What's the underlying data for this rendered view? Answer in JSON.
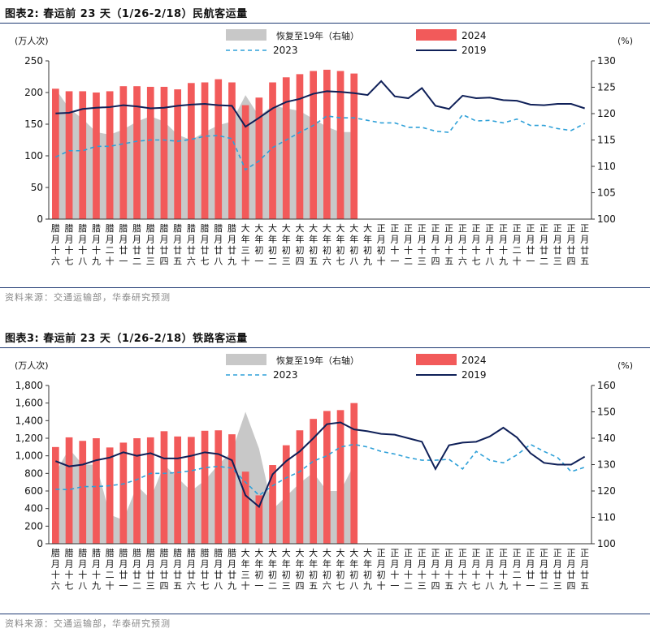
{
  "charts": [
    {
      "title": "图表2:   春运前 23 天（1/26-2/18）民航客运量",
      "source": "资料来源：交通运输部，华泰研究预测",
      "left_unit": "(万人次)",
      "right_unit": "(%)",
      "legend": {
        "recovery": "恢复至19年（右轴）",
        "y2024": "2024",
        "y2023": "2023",
        "y2019": "2019"
      },
      "categories": [
        "腊月十六",
        "腊月十七",
        "腊月十八",
        "腊月十九",
        "腊月二十",
        "腊月廿一",
        "腊月廿二",
        "腊月廿三",
        "腊月廿四",
        "腊月廿五",
        "腊月廿六",
        "腊月廿七",
        "腊月廿八",
        "腊月廿九",
        "大年三十",
        "大年初一",
        "大年初二",
        "大年初三",
        "大年初四",
        "大年初五",
        "大年初六",
        "大年初七",
        "大年初八",
        "大年初九",
        "正月初十",
        "正月十一",
        "正月十二",
        "正月十三",
        "正月十四",
        "正月十五",
        "正月十六",
        "正月十七",
        "正月十八",
        "正月十九",
        "正月二十",
        "正月廿一",
        "正月廿二",
        "正月廿三",
        "正月廿四",
        "正月廿五"
      ],
      "y_ticks": [
        "0",
        "50",
        "100",
        "150",
        "200",
        "250"
      ],
      "y2_ticks": [
        "100",
        "105",
        "110",
        "115",
        "120",
        "125",
        "130"
      ],
      "chart_data": {
        "type": "bar",
        "ylim": [
          0,
          250
        ],
        "y2lim": [
          100,
          130
        ],
        "series": [
          {
            "name": "2024",
            "values": [
              206,
              202,
              202,
              200,
              202,
              210,
              210,
              209,
              209,
              205,
              215,
              216,
              221,
              216,
              180,
              192,
              216,
              224,
              229,
              234,
              236,
              234,
              230
            ]
          },
          {
            "name": "2023",
            "values": [
              98,
              108,
              108,
              115,
              115,
              119,
              123,
              125,
              125,
              123,
              126,
              131,
              132,
              127,
              78,
              92,
              113,
              125,
              137,
              148,
              163,
              160,
              160,
              156,
              152,
              152,
              145,
              145,
              139,
              137,
              165,
              155,
              156,
              152,
              158,
              148,
              148,
              143,
              140,
              151
            ]
          },
          {
            "name": "2019",
            "values": [
              167,
              168,
              174,
              176,
              177,
              180,
              178,
              175,
              176,
              179,
              181,
              182,
              180,
              179,
              146,
              160,
              175,
              185,
              190,
              198,
              202,
              201,
              199,
              196,
              218,
              194,
              191,
              207,
              179,
              174,
              195,
              191,
              192,
              188,
              187,
              181,
              180,
              182,
              182,
              175
            ]
          },
          {
            "name": "恢复至19年（右轴）",
            "values": [
              124.7,
              121,
              119,
              116.5,
              116,
              117,
              118.5,
              119.5,
              118.5,
              116,
              115,
              116.5,
              117.8,
              118.5,
              123.5,
              119.5,
              121.5,
              121,
              120.5,
              119,
              117.5,
              116.5,
              116.5
            ]
          }
        ]
      }
    },
    {
      "title": "图表3:   春运前 23 天（1/26-2/18）铁路客运量",
      "source": "资料来源：交通运输部，华泰研究预测",
      "left_unit": "(万人次)",
      "right_unit": "(%)",
      "legend": {
        "recovery": "恢复至19年（右轴）",
        "y2024": "2024",
        "y2023": "2023",
        "y2019": "2019"
      },
      "categories": [
        "腊月十六",
        "腊月十七",
        "腊月十八",
        "腊月十九",
        "腊月二十",
        "腊月廿一",
        "腊月廿二",
        "腊月廿三",
        "腊月廿四",
        "腊月廿五",
        "腊月廿六",
        "腊月廿七",
        "腊月廿八",
        "腊月廿九",
        "大年三十",
        "大年初一",
        "大年初二",
        "大年初三",
        "大年初四",
        "大年初五",
        "大年初六",
        "大年初七",
        "大年初八",
        "大年初九",
        "正月初十",
        "正月十一",
        "正月十二",
        "正月十三",
        "正月十四",
        "正月十五",
        "正月十六",
        "正月十七",
        "正月十八",
        "正月十九",
        "正月二十",
        "正月廿一",
        "正月廿二",
        "正月廿三",
        "正月廿四",
        "正月廿五"
      ],
      "y_ticks": [
        "0",
        "200",
        "400",
        "600",
        "800",
        "1,000",
        "1,200",
        "1,400",
        "1,600",
        "1,800"
      ],
      "y2_ticks": [
        "100",
        "110",
        "120",
        "130",
        "140",
        "150",
        "160"
      ],
      "chart_data": {
        "type": "bar",
        "ylim": [
          0,
          1800
        ],
        "y2lim": [
          100,
          160
        ],
        "series": [
          {
            "name": "2024",
            "values": [
              1100,
              1210,
              1170,
              1200,
              1095,
              1150,
              1200,
              1210,
              1280,
              1220,
              1215,
              1285,
              1290,
              1245,
              820,
              550,
              895,
              1120,
              1290,
              1420,
              1510,
              1520,
              1600
            ]
          },
          {
            "name": "2023",
            "values": [
              620,
              615,
              650,
              650,
              660,
              680,
              730,
              800,
              800,
              810,
              830,
              865,
              880,
              860,
              700,
              550,
              660,
              750,
              820,
              940,
              1000,
              1100,
              1130,
              1100,
              1050,
              1020,
              980,
              950,
              950,
              960,
              850,
              1050,
              950,
              920,
              1010,
              1130,
              1050,
              980,
              820,
              870
            ]
          },
          {
            "name": "2019",
            "values": [
              940,
              880,
              900,
              950,
              980,
              1040,
              1000,
              1030,
              970,
              970,
              1000,
              1040,
              1020,
              950,
              550,
              420,
              790,
              940,
              1050,
              1200,
              1360,
              1380,
              1300,
              1280,
              1250,
              1240,
              1200,
              1160,
              850,
              1120,
              1150,
              1160,
              1220,
              1320,
              1210,
              1030,
              920,
              900,
              900,
              990
            ]
          },
          {
            "name": "恢复至19年（右轴）",
            "values": [
              127,
              136,
              130,
              130,
              111,
              109,
              122,
              117,
              130,
              125,
              120,
              124,
              130,
              135,
              150,
              136,
              113,
              118,
              123,
              127,
              120,
              120,
              130
            ]
          }
        ]
      }
    }
  ]
}
